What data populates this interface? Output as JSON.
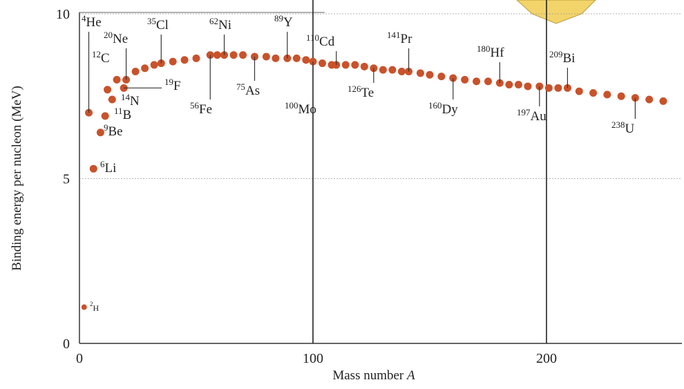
{
  "chart_data": {
    "type": "scatter",
    "ylabel": "Binding energy per nucleon (MeV)",
    "xlabel": "Mass number",
    "xlabel_var": "A",
    "color": "#c9522b",
    "xlim": [
      0,
      258
    ],
    "ylim": [
      0,
      10
    ],
    "xticks": [
      0,
      100,
      200
    ],
    "yticks": [
      0,
      5,
      10
    ],
    "grid": true,
    "x": [
      2,
      4,
      6,
      9,
      11,
      12,
      14,
      16,
      19,
      20,
      24,
      28,
      32,
      35,
      40,
      45,
      50,
      56,
      59,
      62,
      66,
      70,
      75,
      80,
      84,
      89,
      93,
      97,
      100,
      104,
      108,
      110,
      114,
      118,
      122,
      126,
      130,
      134,
      138,
      141,
      146,
      150,
      155,
      160,
      165,
      170,
      175,
      180,
      184,
      188,
      192,
      197,
      201,
      205,
      209,
      214,
      220,
      226,
      232,
      238,
      244,
      250
    ],
    "values": [
      1.1,
      7.0,
      5.3,
      6.4,
      6.9,
      7.7,
      7.4,
      8.0,
      7.75,
      8.0,
      8.25,
      8.35,
      8.45,
      8.5,
      8.55,
      8.6,
      8.65,
      8.75,
      8.75,
      8.75,
      8.75,
      8.75,
      8.7,
      8.7,
      8.65,
      8.65,
      8.65,
      8.6,
      8.55,
      8.5,
      8.45,
      8.45,
      8.45,
      8.45,
      8.4,
      8.35,
      8.3,
      8.3,
      8.25,
      8.25,
      8.2,
      8.15,
      8.1,
      8.05,
      8.0,
      7.95,
      7.95,
      7.9,
      7.85,
      7.85,
      7.8,
      7.8,
      7.75,
      7.75,
      7.75,
      7.65,
      7.6,
      7.55,
      7.5,
      7.45,
      7.4,
      7.35
    ],
    "annotations": [
      {
        "mass": "4",
        "symbol": "He"
      },
      {
        "mass": "20",
        "symbol": "Ne"
      },
      {
        "mass": "35",
        "symbol": "Cl"
      },
      {
        "mass": "62",
        "symbol": "Ni"
      },
      {
        "mass": "89",
        "symbol": "Y"
      },
      {
        "mass": "110",
        "symbol": "Cd"
      },
      {
        "mass": "141",
        "symbol": "Pr"
      },
      {
        "mass": "180",
        "symbol": "Hf"
      },
      {
        "mass": "209",
        "symbol": "Bi"
      },
      {
        "mass": "12",
        "symbol": "C"
      },
      {
        "mass": "14",
        "symbol": "N"
      },
      {
        "mass": "19",
        "symbol": "F"
      },
      {
        "mass": "11",
        "symbol": "B"
      },
      {
        "mass": "9",
        "symbol": "Be"
      },
      {
        "mass": "6",
        "symbol": "Li"
      },
      {
        "mass": "2",
        "symbol": "H"
      },
      {
        "mass": "56",
        "symbol": "Fe"
      },
      {
        "mass": "75",
        "symbol": "As"
      },
      {
        "mass": "100",
        "symbol": "Mo"
      },
      {
        "mass": "126",
        "symbol": "Te"
      },
      {
        "mass": "160",
        "symbol": "Dy"
      },
      {
        "mass": "197",
        "symbol": "Au"
      },
      {
        "mass": "238",
        "symbol": "U"
      }
    ]
  }
}
